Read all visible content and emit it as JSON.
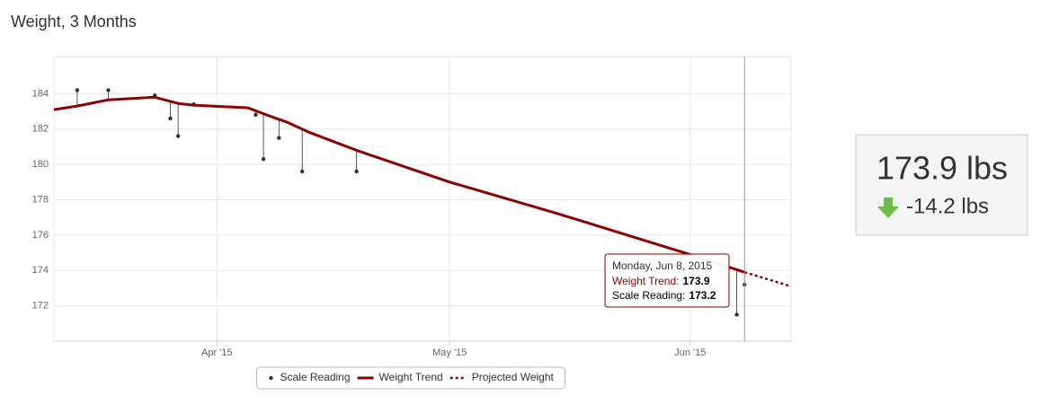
{
  "title": "Weight, 3 Months",
  "chart_data": {
    "type": "line",
    "xlim": [
      "2015-03-11",
      "2015-06-14"
    ],
    "xticks": [
      {
        "value": "2015-04-01",
        "label": "Apr '15"
      },
      {
        "value": "2015-05-01",
        "label": "May '15"
      },
      {
        "value": "2015-06-01",
        "label": "Jun '15"
      }
    ],
    "ylim": [
      170,
      186.1
    ],
    "yticks": [
      172,
      174,
      176,
      178,
      180,
      182,
      184
    ],
    "grid": true,
    "series": [
      {
        "name": "Scale Reading",
        "type": "scatter",
        "color": "#333333",
        "x": [
          "2015-03-14",
          "2015-03-18",
          "2015-03-24",
          "2015-03-26",
          "2015-03-27",
          "2015-03-29",
          "2015-04-06",
          "2015-04-07",
          "2015-04-09",
          "2015-04-12",
          "2015-04-19",
          "2015-06-07",
          "2015-06-08"
        ],
        "values": [
          184.2,
          184.2,
          183.9,
          182.6,
          181.6,
          183.4,
          182.8,
          180.3,
          181.5,
          179.6,
          179.6,
          171.5,
          173.2
        ]
      },
      {
        "name": "Weight Trend",
        "type": "line",
        "color": "#8b0000",
        "x": [
          "2015-03-11",
          "2015-03-14",
          "2015-03-18",
          "2015-03-24",
          "2015-03-27",
          "2015-03-29",
          "2015-04-05",
          "2015-04-08",
          "2015-04-10",
          "2015-04-13",
          "2015-04-19",
          "2015-05-01",
          "2015-05-15",
          "2015-06-01",
          "2015-06-08"
        ],
        "values": [
          183.1,
          183.3,
          183.65,
          183.8,
          183.45,
          183.35,
          183.2,
          182.7,
          182.4,
          181.8,
          180.8,
          179.0,
          177.2,
          174.9,
          173.9
        ]
      },
      {
        "name": "Projected Weight",
        "type": "line",
        "dash": "dotted",
        "color": "#8b0000",
        "x": [
          "2015-06-08",
          "2015-06-14"
        ],
        "values": [
          173.9,
          173.1
        ]
      }
    ],
    "tooltip": {
      "date": "Monday, Jun 8, 2015",
      "trend_label": "Weight Trend:",
      "scale_label": "Scale Reading:"
    }
  },
  "summary": {
    "current": "173.9 lbs",
    "change": "-14.2 lbs"
  }
}
